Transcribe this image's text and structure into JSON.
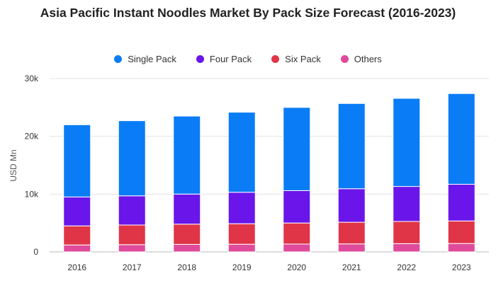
{
  "chart_data": {
    "type": "bar",
    "stacked": true,
    "title": "Asia Pacific Instant Noodles Market By Pack Size Forecast (2016-2023)",
    "xlabel": "",
    "ylabel": "USD Mn",
    "ylim": [
      0,
      30000
    ],
    "yticks": [
      0,
      10000,
      20000,
      30000
    ],
    "ytick_labels": [
      "0",
      "10k",
      "20k",
      "30k"
    ],
    "grid": true,
    "legend_position": "top-center",
    "categories": [
      "2016",
      "2017",
      "2018",
      "2019",
      "2020",
      "2021",
      "2022",
      "2023"
    ],
    "series": [
      {
        "name": "Others",
        "color": "#e04a9a",
        "values": [
          1200,
          1250,
          1300,
          1320,
          1350,
          1380,
          1420,
          1450
        ]
      },
      {
        "name": "Six Pack",
        "color": "#e03546",
        "values": [
          3300,
          3400,
          3500,
          3550,
          3650,
          3750,
          3850,
          3900
        ]
      },
      {
        "name": "Four Pack",
        "color": "#6a15ea",
        "values": [
          5000,
          5050,
          5200,
          5450,
          5600,
          5800,
          6050,
          6350
        ]
      },
      {
        "name": "Single Pack",
        "color": "#0a7cf6",
        "values": [
          12500,
          13000,
          13500,
          13850,
          14400,
          14750,
          15250,
          15700
        ]
      }
    ],
    "legend_order": [
      "Single Pack",
      "Four Pack",
      "Six Pack",
      "Others"
    ]
  }
}
